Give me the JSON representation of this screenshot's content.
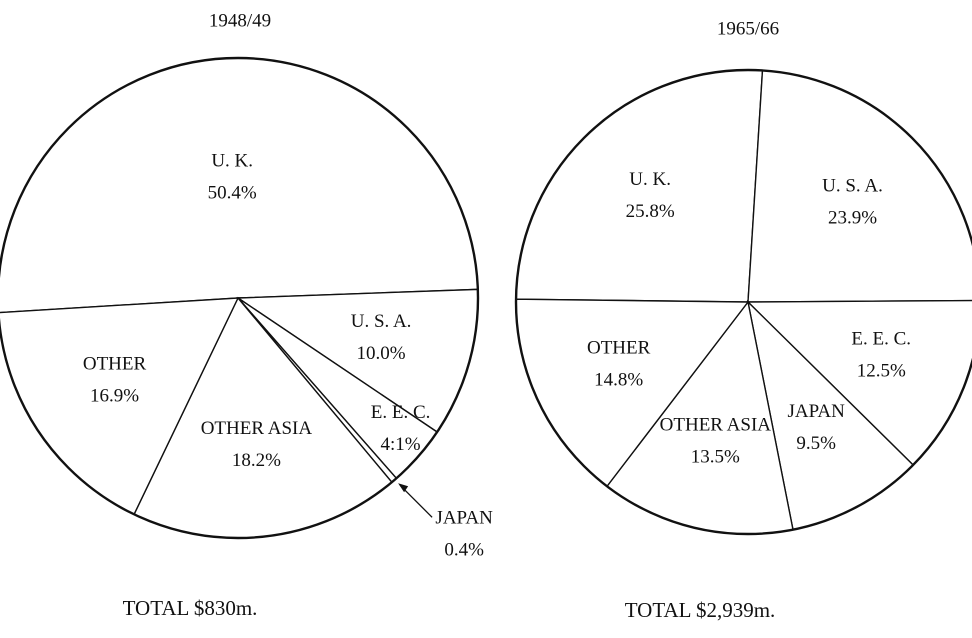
{
  "chart_data": [
    {
      "type": "pie",
      "title": "1948/49",
      "subtitle": "TOTAL $830m.",
      "categories": [
        "U. K.",
        "U. S. A.",
        "E. E. C.",
        "JAPAN",
        "OTHER ASIA",
        "OTHER"
      ],
      "values": [
        50.4,
        10.0,
        4.1,
        0.4,
        18.2,
        16.9
      ],
      "value_labels": [
        "50.4%",
        "10.0%",
        "4:1%",
        "0.4%",
        "18.2%",
        "16.9%"
      ]
    },
    {
      "type": "pie",
      "title": "1965/66",
      "subtitle": "TOTAL $2,939m.",
      "categories": [
        "U. K.",
        "U. S. A.",
        "E. E. C.",
        "JAPAN",
        "OTHER ASIA",
        "OTHER"
      ],
      "values": [
        25.8,
        23.9,
        12.5,
        9.5,
        13.5,
        14.8
      ],
      "value_labels": [
        "25.8%",
        "23.9%",
        "12.5%",
        "9.5%",
        "13.5%",
        "14.8%"
      ]
    }
  ]
}
